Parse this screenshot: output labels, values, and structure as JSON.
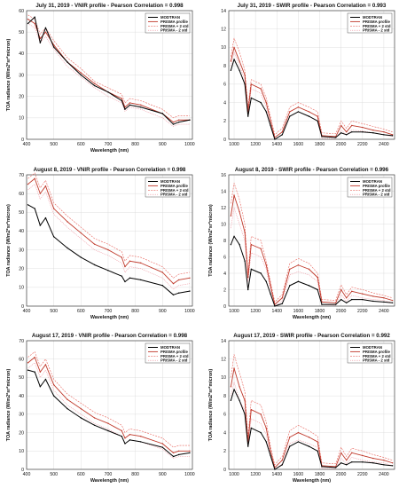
{
  "colors": {
    "modtran": "#000000",
    "prisma_profile": "#c0392b",
    "prisma_plus_2std": "#e8645c",
    "prisma_minus_2std": "#ee8e9a",
    "grid": "#d7d7d7"
  },
  "chart_data": [
    {
      "type": "line",
      "title": "July 31, 2019 - VNIR profile - Pearson Correlation = 0.998",
      "xlabel": "Wavelength (nm)",
      "ylabel": "TOA radiance (W/m2*sr*micron)",
      "xlim": [
        400,
        1010
      ],
      "ylim": [
        0,
        60
      ],
      "xticks": [
        400,
        500,
        600,
        700,
        800,
        900,
        1000
      ],
      "yticks": [
        0,
        10,
        20,
        30,
        40,
        50,
        60
      ],
      "grid": true,
      "legend": "top-right",
      "x": [
        405,
        430,
        450,
        470,
        500,
        550,
        600,
        650,
        700,
        750,
        762,
        780,
        820,
        900,
        940,
        960,
        1000
      ],
      "series": [
        {
          "name": "MODTRAN",
          "values": [
            54,
            57,
            45,
            52,
            43,
            36,
            30,
            25,
            22,
            18,
            14,
            16,
            15,
            12,
            7,
            8,
            9
          ]
        },
        {
          "name": "PRISMA profile",
          "values": [
            56,
            54,
            47,
            50,
            44,
            36,
            31,
            26,
            22,
            19,
            15,
            17,
            16,
            12,
            8,
            9,
            9
          ]
        },
        {
          "name": "PRISMA + 2 std",
          "values": [
            58,
            56,
            49,
            52,
            46,
            38,
            33,
            27,
            24,
            21,
            17,
            19,
            18,
            14,
            10,
            11,
            11
          ]
        },
        {
          "name": "PRISMA - 2 std",
          "values": [
            54,
            52,
            45,
            48,
            42,
            34,
            29,
            24,
            20,
            17,
            13,
            15,
            14,
            10,
            6,
            7,
            7
          ]
        }
      ]
    },
    {
      "type": "line",
      "title": "July 31, 2019 - SWIR profile - Pearson Correlation = 0.993",
      "xlabel": "",
      "ylabel": "",
      "xlim": [
        950,
        2500
      ],
      "ylim": [
        0,
        14
      ],
      "xticks": [
        1000,
        1200,
        1400,
        1600,
        1800,
        2000,
        2200,
        2400
      ],
      "yticks": [
        0,
        2,
        4,
        6,
        8,
        10,
        12,
        14
      ],
      "grid": true,
      "legend": "top-right",
      "x": [
        970,
        1000,
        1050,
        1100,
        1130,
        1160,
        1250,
        1300,
        1340,
        1380,
        1450,
        1520,
        1600,
        1700,
        1780,
        1820,
        1950,
        2000,
        2050,
        2100,
        2200,
        2300,
        2400,
        2480
      ],
      "series": [
        {
          "name": "MODTRAN",
          "values": [
            7.5,
            8.7,
            7.5,
            6,
            2.5,
            4.5,
            4,
            3,
            1.5,
            0,
            0.5,
            2.5,
            3,
            2.5,
            2,
            0.3,
            0.2,
            0.7,
            0.5,
            0.8,
            0.8,
            0.7,
            0.5,
            0.4
          ]
        },
        {
          "name": "PRISMA profile",
          "values": [
            8.5,
            10,
            8.5,
            7,
            3,
            6,
            5.5,
            4,
            2,
            0.2,
            0.8,
            3,
            3.5,
            3,
            2.5,
            0.4,
            0.3,
            1.5,
            0.8,
            1.5,
            1.3,
            1,
            0.8,
            0.5
          ]
        },
        {
          "name": "PRISMA + 2 std",
          "values": [
            9,
            11,
            9.5,
            7.5,
            3.5,
            6.5,
            6,
            4.5,
            2.5,
            0.5,
            1.2,
            3.5,
            4,
            3.5,
            3,
            0.7,
            0.6,
            2,
            1.2,
            2,
            1.7,
            1.4,
            1.1,
            0.8
          ]
        },
        {
          "name": "PRISMA - 2 std",
          "values": [
            8,
            9.5,
            8,
            6.5,
            2.5,
            5.5,
            5,
            3.5,
            1.5,
            0,
            0.5,
            2.5,
            3,
            2.5,
            2,
            0.1,
            0.1,
            1,
            0.5,
            1,
            0.9,
            0.7,
            0.5,
            0.3
          ]
        }
      ]
    },
    {
      "type": "line",
      "title": "August 8, 2019 - VNIR profile - Pearson Correlation = 0.998",
      "xlabel": "Wavelength (nm)",
      "ylabel": "TOA radiance (W/m2*sr*micron)",
      "xlim": [
        400,
        1010
      ],
      "ylim": [
        0,
        70
      ],
      "xticks": [
        400,
        500,
        600,
        700,
        800,
        900,
        1000
      ],
      "yticks": [
        0,
        10,
        20,
        30,
        40,
        50,
        60,
        70
      ],
      "grid": true,
      "legend": "top-right",
      "x": [
        405,
        430,
        450,
        470,
        500,
        550,
        600,
        650,
        700,
        750,
        762,
        780,
        820,
        900,
        940,
        960,
        1000
      ],
      "series": [
        {
          "name": "MODTRAN",
          "values": [
            54,
            52,
            43,
            47,
            37,
            31,
            26,
            22,
            19,
            16,
            13,
            15,
            14,
            11,
            6,
            7,
            8
          ]
        },
        {
          "name": "PRISMA profile",
          "values": [
            65,
            68,
            60,
            64,
            52,
            45,
            39,
            33,
            30,
            26,
            21,
            24,
            23,
            18,
            12,
            14,
            15
          ]
        },
        {
          "name": "PRISMA + 2 std",
          "values": [
            68,
            71,
            63,
            67,
            55,
            48,
            42,
            36,
            33,
            29,
            24,
            27,
            26,
            21,
            15,
            17,
            18
          ]
        },
        {
          "name": "PRISMA - 2 std",
          "values": [
            62,
            65,
            57,
            61,
            49,
            42,
            36,
            30,
            27,
            23,
            18,
            21,
            20,
            15,
            9,
            11,
            12
          ]
        }
      ]
    },
    {
      "type": "line",
      "title": "August 8, 2019 - SWIR profile - Pearson Correlation = 0.996",
      "xlabel": "Wavelength (nm)",
      "ylabel": "TOA radiance (W/m2*sr*micron)",
      "xlim": [
        950,
        2500
      ],
      "ylim": [
        0,
        16
      ],
      "xticks": [
        1000,
        1200,
        1400,
        1600,
        1800,
        2000,
        2200,
        2400
      ],
      "yticks": [
        0,
        2,
        4,
        6,
        8,
        10,
        12,
        14,
        16
      ],
      "grid": true,
      "legend": "top-right",
      "x": [
        970,
        1000,
        1050,
        1100,
        1130,
        1160,
        1250,
        1300,
        1340,
        1380,
        1450,
        1520,
        1600,
        1700,
        1780,
        1820,
        1950,
        2000,
        2050,
        2100,
        2200,
        2300,
        2400,
        2480
      ],
      "series": [
        {
          "name": "MODTRAN",
          "values": [
            7.5,
            8.5,
            7.5,
            5.5,
            2,
            4.5,
            4,
            3,
            1.5,
            0,
            0.3,
            2.5,
            3,
            2.5,
            2,
            0.2,
            0.2,
            0.8,
            0.4,
            0.8,
            0.8,
            0.6,
            0.5,
            0.4
          ]
        },
        {
          "name": "PRISMA profile",
          "values": [
            11,
            13.5,
            11.5,
            9,
            3.5,
            7.5,
            7,
            5,
            2.5,
            0.2,
            1,
            4.5,
            5,
            4.5,
            3.5,
            0.5,
            0.4,
            2,
            1,
            1.8,
            1.5,
            1.2,
            1,
            0.7
          ]
        },
        {
          "name": "PRISMA + 2 std",
          "values": [
            12.5,
            15,
            13,
            10,
            4,
            8.5,
            8,
            5.5,
            3,
            0.5,
            1.4,
            5.2,
            5.8,
            5.2,
            4,
            0.8,
            0.7,
            2.6,
            1.4,
            2.3,
            2,
            1.6,
            1.3,
            1
          ]
        },
        {
          "name": "PRISMA - 2 std",
          "values": [
            9.5,
            12,
            10,
            8,
            3,
            6.5,
            6,
            4.5,
            2,
            0,
            0.6,
            3.8,
            4.2,
            3.8,
            3,
            0.2,
            0.1,
            1.4,
            0.6,
            1.3,
            1,
            0.8,
            0.7,
            0.4
          ]
        }
      ]
    },
    {
      "type": "line",
      "title": "August 17, 2019 - VNIR profile - Pearson Correlation = 0.998",
      "xlabel": "Wavelength (nm)",
      "ylabel": "TOA radiance (W/m2*sr*micron)",
      "xlim": [
        400,
        1010
      ],
      "ylim": [
        0,
        70
      ],
      "xticks": [
        400,
        500,
        600,
        700,
        800,
        900,
        1000
      ],
      "yticks": [
        0,
        10,
        20,
        30,
        40,
        50,
        60,
        70
      ],
      "grid": true,
      "legend": "top-right",
      "x": [
        405,
        430,
        450,
        470,
        500,
        550,
        600,
        650,
        700,
        750,
        762,
        780,
        820,
        900,
        940,
        960,
        1000
      ],
      "series": [
        {
          "name": "MODTRAN",
          "values": [
            54,
            53,
            45,
            49,
            40,
            33,
            28,
            24,
            21,
            18,
            14,
            16,
            15,
            12,
            7,
            8,
            9
          ]
        },
        {
          "name": "PRISMA profile",
          "values": [
            58,
            61,
            53,
            57,
            46,
            38,
            33,
            28,
            25,
            21,
            17,
            19,
            18,
            14,
            9,
            10,
            10
          ]
        },
        {
          "name": "PRISMA + 2 std",
          "values": [
            61,
            64,
            56,
            60,
            49,
            41,
            36,
            31,
            28,
            24,
            20,
            22,
            21,
            17,
            12,
            13,
            13
          ]
        },
        {
          "name": "PRISMA - 2 std",
          "values": [
            55,
            58,
            50,
            54,
            43,
            35,
            30,
            25,
            22,
            18,
            14,
            16,
            15,
            11,
            6,
            7,
            7
          ]
        }
      ]
    },
    {
      "type": "line",
      "title": "August 17, 2019 - SWIR profile - Pearson Correlation = 0.992",
      "xlabel": "Wavelength (nm)",
      "ylabel": "TOA radiance (W/m2*sr*micron)",
      "xlim": [
        950,
        2500
      ],
      "ylim": [
        0,
        14
      ],
      "xticks": [
        1000,
        1200,
        1400,
        1600,
        1800,
        2000,
        2200,
        2400
      ],
      "yticks": [
        0,
        2,
        4,
        6,
        8,
        10,
        12,
        14
      ],
      "grid": true,
      "legend": "top-right",
      "x": [
        970,
        1000,
        1050,
        1100,
        1130,
        1160,
        1250,
        1300,
        1340,
        1380,
        1450,
        1520,
        1600,
        1700,
        1780,
        1820,
        1950,
        2000,
        2050,
        2100,
        2200,
        2300,
        2400,
        2480
      ],
      "series": [
        {
          "name": "MODTRAN",
          "values": [
            7.5,
            8.7,
            7.5,
            6,
            2.5,
            4.5,
            4,
            3,
            1.5,
            0,
            0.5,
            2.5,
            3,
            2.5,
            2,
            0.3,
            0.2,
            0.7,
            0.5,
            0.8,
            0.8,
            0.7,
            0.5,
            0.4
          ]
        },
        {
          "name": "PRISMA profile",
          "values": [
            9,
            11,
            9,
            7.5,
            3,
            6.5,
            6,
            4.5,
            2,
            0.2,
            1,
            3.5,
            4,
            3.5,
            3,
            0.4,
            0.3,
            1.8,
            1,
            1.8,
            1.5,
            1.2,
            1,
            0.7
          ]
        },
        {
          "name": "PRISMA + 2 std",
          "values": [
            10,
            12.5,
            10.5,
            8.5,
            3.5,
            7.5,
            7,
            5.2,
            2.5,
            0.5,
            1.4,
            4.2,
            4.8,
            4.2,
            3.6,
            0.7,
            0.6,
            2.4,
            1.4,
            2.3,
            2,
            1.6,
            1.3,
            1
          ]
        },
        {
          "name": "PRISMA - 2 std",
          "values": [
            8,
            9.5,
            7.5,
            6.5,
            2.5,
            5.5,
            5,
            3.8,
            1.5,
            0,
            0.6,
            2.8,
            3.2,
            2.8,
            2.4,
            0.1,
            0.1,
            1.2,
            0.6,
            1.3,
            1,
            0.8,
            0.7,
            0.4
          ]
        }
      ]
    }
  ]
}
